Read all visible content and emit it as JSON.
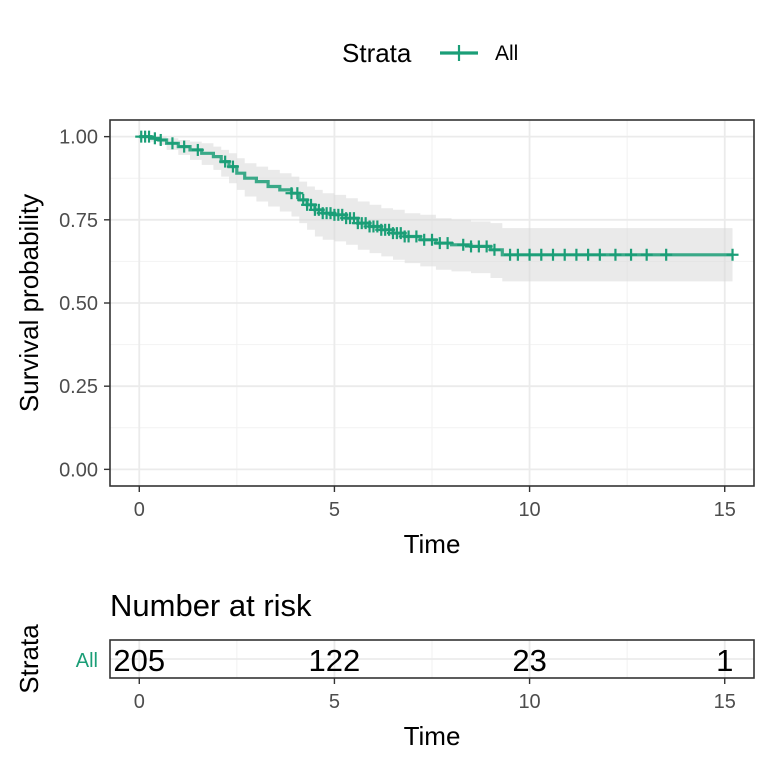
{
  "legend": {
    "title": "Strata",
    "entries": [
      {
        "label": "All",
        "color": "#1b9e77"
      }
    ]
  },
  "chart_data": [
    {
      "type": "line",
      "subtype": "kaplan-meier",
      "xlabel": "Time",
      "ylabel": "Survival probability",
      "xlim": [
        -0.75,
        15.75
      ],
      "ylim": [
        -0.05,
        1.05
      ],
      "xticks": [
        0,
        5,
        10,
        15
      ],
      "xtick_labels": [
        "0",
        "5",
        "10",
        "15"
      ],
      "yticks": [
        0,
        0.25,
        0.5,
        0.75,
        1.0
      ],
      "ytick_labels": [
        "0.00",
        "0.25",
        "0.50",
        "0.75",
        "1.00"
      ],
      "grid": true,
      "legend_position": "top",
      "series": [
        {
          "name": "All",
          "color": "#1b9e77",
          "x": [
            0,
            0.3,
            0.5,
            0.7,
            1.0,
            1.3,
            1.6,
            1.9,
            2.1,
            2.3,
            2.5,
            2.7,
            3.0,
            3.3,
            3.6,
            3.9,
            4.1,
            4.3,
            4.5,
            4.7,
            5.0,
            5.3,
            5.6,
            5.9,
            6.2,
            6.5,
            6.8,
            7.2,
            7.6,
            8.0,
            8.5,
            9.0,
            9.3,
            15.2
          ],
          "y": [
            1.0,
            0.995,
            0.99,
            0.98,
            0.97,
            0.96,
            0.95,
            0.94,
            0.925,
            0.91,
            0.89,
            0.875,
            0.865,
            0.85,
            0.84,
            0.83,
            0.81,
            0.795,
            0.78,
            0.77,
            0.765,
            0.755,
            0.74,
            0.73,
            0.72,
            0.71,
            0.7,
            0.69,
            0.68,
            0.675,
            0.67,
            0.66,
            0.645,
            0.645
          ],
          "ci_lower": [
            1.0,
            0.985,
            0.975,
            0.96,
            0.945,
            0.93,
            0.915,
            0.9,
            0.88,
            0.86,
            0.84,
            0.82,
            0.805,
            0.79,
            0.775,
            0.76,
            0.74,
            0.72,
            0.7,
            0.69,
            0.685,
            0.675,
            0.66,
            0.65,
            0.64,
            0.63,
            0.62,
            0.61,
            0.6,
            0.595,
            0.59,
            0.575,
            0.565,
            0.565
          ],
          "ci_upper": [
            1.0,
            1.0,
            1.0,
            0.995,
            0.99,
            0.985,
            0.98,
            0.97,
            0.96,
            0.95,
            0.935,
            0.92,
            0.91,
            0.9,
            0.89,
            0.88,
            0.865,
            0.85,
            0.84,
            0.83,
            0.825,
            0.815,
            0.805,
            0.795,
            0.785,
            0.78,
            0.77,
            0.765,
            0.755,
            0.75,
            0.745,
            0.74,
            0.725,
            0.725
          ],
          "censor_x": [
            0.05,
            0.15,
            0.25,
            0.4,
            0.55,
            0.85,
            1.15,
            1.5,
            2.2,
            2.4,
            3.9,
            4.05,
            4.2,
            4.3,
            4.4,
            4.5,
            4.6,
            4.7,
            4.8,
            4.9,
            5.0,
            5.1,
            5.2,
            5.3,
            5.4,
            5.5,
            5.6,
            5.7,
            5.8,
            5.9,
            6.0,
            6.1,
            6.2,
            6.3,
            6.4,
            6.5,
            6.6,
            6.7,
            6.8,
            6.9,
            7.1,
            7.3,
            7.5,
            7.7,
            7.9,
            8.3,
            8.5,
            8.7,
            8.9,
            9.1,
            9.5,
            9.7,
            10.0,
            10.3,
            10.6,
            10.9,
            11.2,
            11.5,
            11.8,
            12.2,
            12.6,
            13.0,
            13.5,
            15.2
          ]
        }
      ]
    },
    {
      "type": "table",
      "title": "Number at risk",
      "ylabel": "Strata",
      "xlabel": "Time",
      "row_labels": [
        "All"
      ],
      "xlim": [
        -0.75,
        15.75
      ],
      "xticks": [
        0,
        5,
        10,
        15
      ],
      "xtick_labels": [
        "0",
        "5",
        "10",
        "15"
      ],
      "rows": [
        {
          "label": "All",
          "color": "#1b9e77",
          "values": [
            "205",
            "122",
            "23",
            "1"
          ]
        }
      ]
    }
  ]
}
